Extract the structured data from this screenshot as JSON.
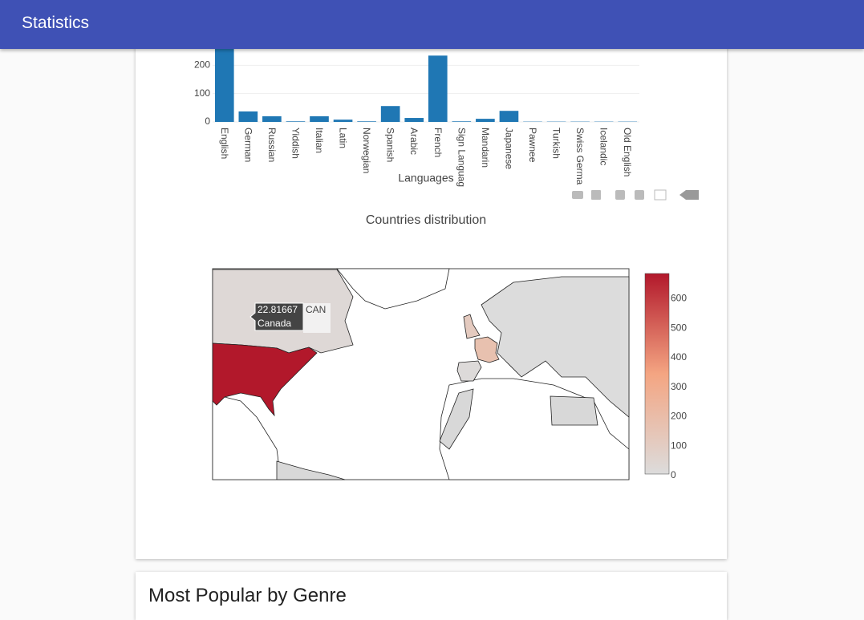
{
  "header": {
    "title": "Statistics"
  },
  "chart_data": [
    {
      "type": "bar",
      "x_label": "Languages",
      "categories": [
        "English",
        "German",
        "Russian",
        "Yiddish",
        "Italian",
        "Latin",
        "Norwegian",
        "Spanish",
        "Arabic",
        "French",
        "Sign Languag",
        "Mandarin",
        "Japanese",
        "Pawnee",
        "Turkish",
        "Swiss Germa",
        "Icelandic",
        "Old English"
      ],
      "values": [
        300,
        37,
        20,
        2,
        20,
        8,
        2,
        56,
        14,
        234,
        2,
        11,
        39,
        1,
        1,
        1,
        1,
        1
      ],
      "color": "#1f77b4",
      "ylim": [
        0,
        300
      ],
      "yticks": [
        0,
        100,
        200
      ],
      "grid": true
    },
    {
      "type": "choropleth",
      "title": "Countries distribution",
      "locations": [
        "CAN",
        "USA",
        "FRA",
        "GBR",
        "ESP"
      ],
      "values": [
        22.81667,
        680,
        170,
        110,
        10
      ],
      "hover_name": "Canada",
      "colorscale": [
        "#dcdcdc",
        "#f4a582",
        "#b2182b"
      ],
      "zlim": [
        0,
        680
      ],
      "zticks": [
        0,
        100,
        200,
        300,
        400,
        500,
        600
      ]
    }
  ],
  "next_card": {
    "title": "Most Popular by Genre"
  }
}
